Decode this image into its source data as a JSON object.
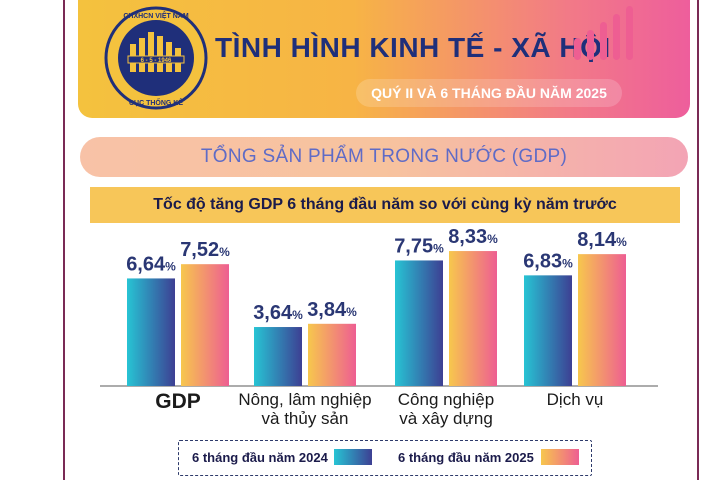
{
  "header": {
    "title": "TÌNH HÌNH KINH TẾ - XÃ HỘI",
    "subtitle": "QUÝ II VÀ 6 THÁNG ĐẦU NĂM 2025",
    "logo": {
      "top_text": "CHXHCN VIỆT NAM",
      "date": "6 - 5 - 1946",
      "bottom_text": "CỤC THỐNG KÊ"
    }
  },
  "section": {
    "title": "TỔNG SẢN PHẨM TRONG NƯỚC (GDP)"
  },
  "chart_data": {
    "type": "bar",
    "title": "Tốc độ tăng GDP 6 tháng đầu năm so với cùng kỳ năm trước",
    "categories": [
      "GDP",
      "Nông, lâm nghiệp và thủy sản",
      "Công nghiệp và xây dựng",
      "Dịch vụ"
    ],
    "category_lines": [
      [
        "GDP"
      ],
      [
        "Nông, lâm nghiệp",
        "và thủy sản"
      ],
      [
        "Công nghiệp",
        "và xây dựng"
      ],
      [
        "Dịch vụ"
      ]
    ],
    "series": [
      {
        "name": "6 tháng đầu năm 2024",
        "values": [
          6.64,
          3.64,
          7.75,
          6.83
        ],
        "labels": [
          "6,64",
          "3,64",
          "7,75",
          "6,83"
        ]
      },
      {
        "name": "6 tháng đầu năm 2025",
        "values": [
          7.52,
          3.84,
          8.33,
          8.14
        ],
        "labels": [
          "7,52",
          "3,84",
          "8,33",
          "8,14"
        ]
      }
    ],
    "value_suffix": "%",
    "colors": {
      "series_2024": [
        "#27c4d4",
        "#3d3f93"
      ],
      "series_2025": [
        "#f7c74d",
        "#ee5e92"
      ],
      "value_label": "#2a3774"
    },
    "grid": false,
    "legend": "bottom"
  }
}
